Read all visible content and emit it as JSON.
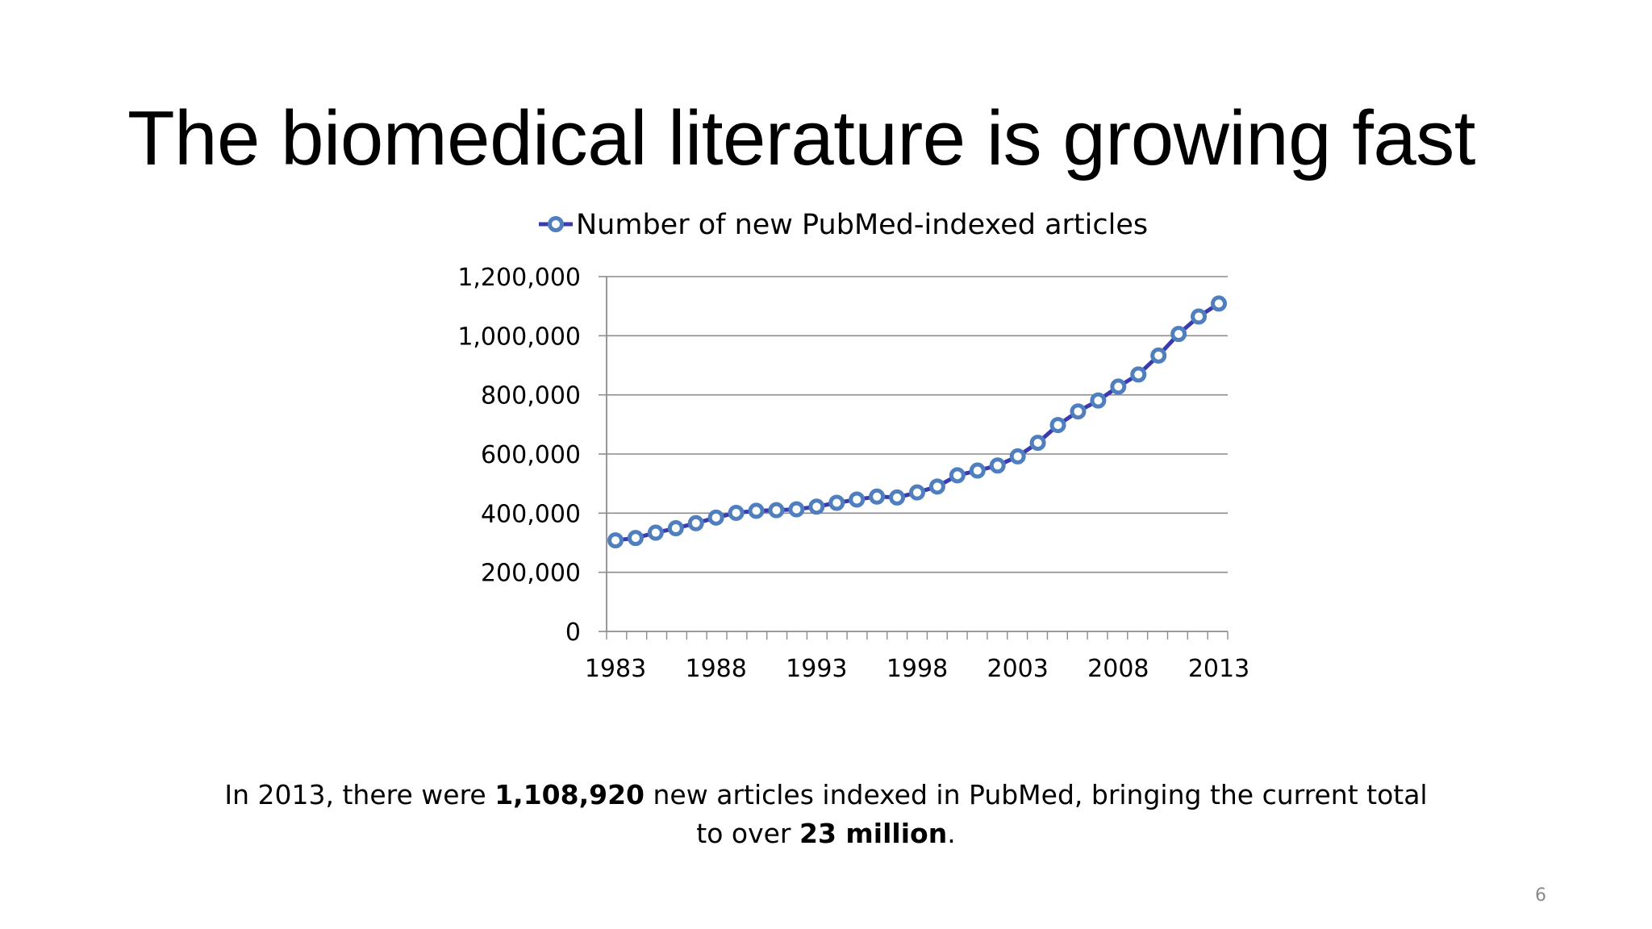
{
  "slide": {
    "title": "The biomedical literature is growing fast",
    "page_number": "6"
  },
  "caption": {
    "line1_pre": "In 2013, there were ",
    "line1_bold": "1,108,920",
    "line1_post": " new articles indexed in PubMed, bringing the current total",
    "line2_pre": "to over ",
    "line2_bold": "23 million",
    "line2_post": "."
  },
  "chart_data": {
    "type": "line",
    "title": "",
    "xlabel": "",
    "ylabel": "",
    "legend_position": "top",
    "grid": true,
    "series_color": "#3b3bb0",
    "marker_edge_color": "#4f7fbf",
    "marker_fill_color": "#ffffff",
    "ylim": [
      0,
      1200000
    ],
    "xlim": [
      1983,
      2013
    ],
    "y_ticks": [
      0,
      200000,
      400000,
      600000,
      800000,
      1000000,
      1200000
    ],
    "y_tick_labels": [
      "0",
      "200,000",
      "400,000",
      "600,000",
      "800,000",
      "1,000,000",
      "1,200,000"
    ],
    "x_tick_labels": [
      "1983",
      "1988",
      "1993",
      "1998",
      "2003",
      "2008",
      "2013"
    ],
    "x": [
      1983,
      1984,
      1985,
      1986,
      1987,
      1988,
      1989,
      1990,
      1991,
      1992,
      1993,
      1994,
      1995,
      1996,
      1997,
      1998,
      1999,
      2000,
      2001,
      2002,
      2003,
      2004,
      2005,
      2006,
      2007,
      2008,
      2009,
      2010,
      2011,
      2012,
      2013
    ],
    "series": [
      {
        "name": "Number of new PubMed-indexed articles",
        "values": [
          308000,
          316000,
          334000,
          349000,
          366000,
          385000,
          401000,
          408000,
          410000,
          413000,
          422000,
          435000,
          446000,
          456000,
          453000,
          470000,
          490000,
          528000,
          544000,
          561000,
          592000,
          638000,
          698000,
          744000,
          781000,
          828000,
          869000,
          933000,
          1006000,
          1065000,
          1108920
        ]
      }
    ]
  }
}
